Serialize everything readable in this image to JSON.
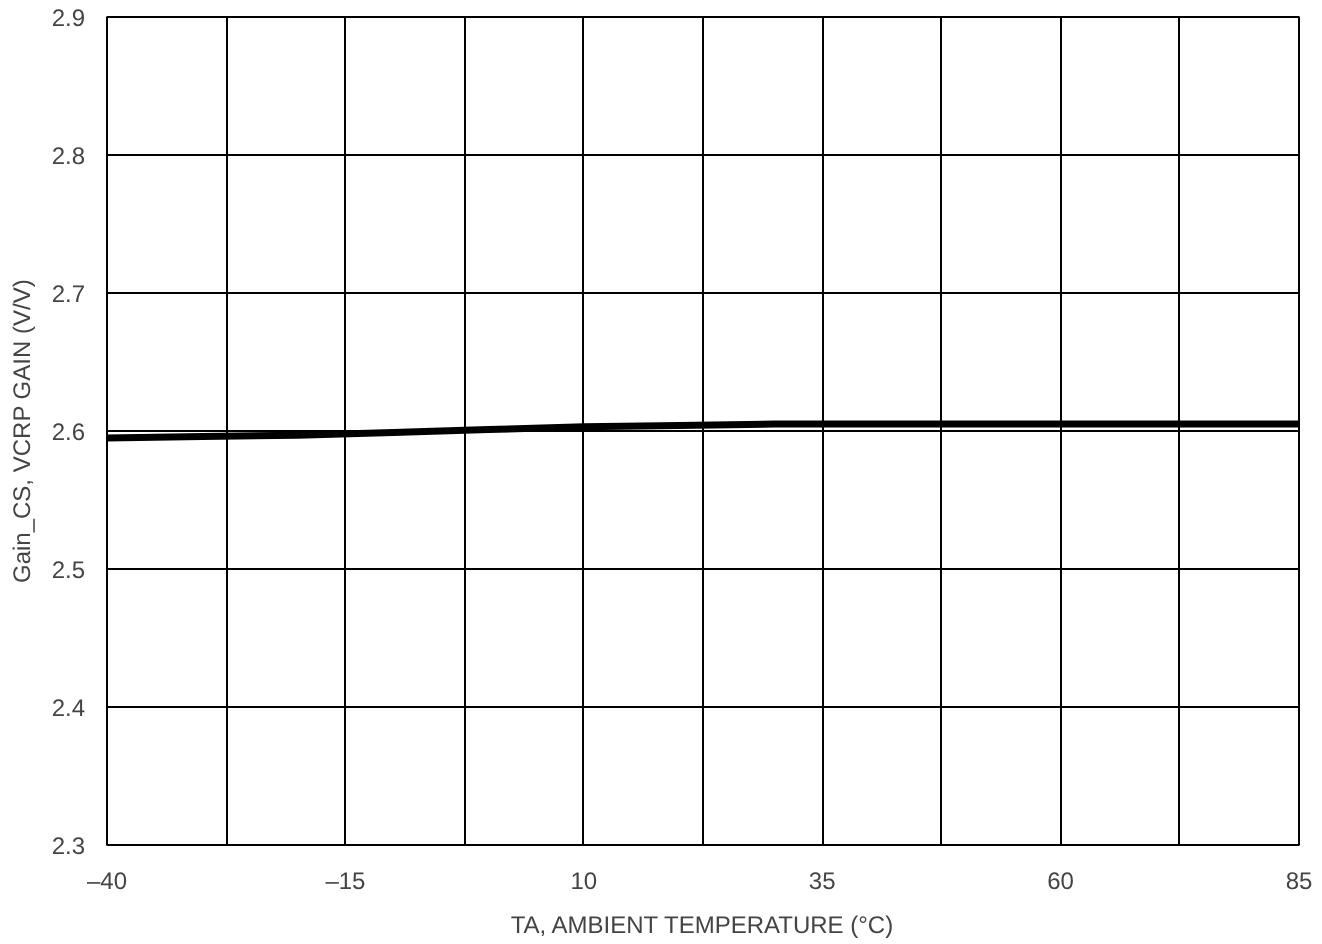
{
  "chart_data": {
    "type": "line",
    "xlabel": "TA, AMBIENT TEMPERATURE (°C)",
    "ylabel": "Gain_CS, VCRP GAIN (V/V)",
    "x": [
      -40,
      -30,
      -20,
      -10,
      0,
      10,
      20,
      30,
      40,
      50,
      60,
      70,
      85
    ],
    "series": [
      {
        "color": "#000000",
        "values": [
          2.595,
          2.596,
          2.597,
          2.599,
          2.601,
          2.603,
          2.604,
          2.605,
          2.605,
          2.605,
          2.605,
          2.605,
          2.605
        ]
      }
    ],
    "xlim": [
      -40,
      85
    ],
    "ylim": [
      2.3,
      2.9
    ],
    "xticks": [
      {
        "value": -40,
        "label": "–40"
      },
      {
        "value": -27.5,
        "label": null
      },
      {
        "value": -15,
        "label": "–15"
      },
      {
        "value": -2.5,
        "label": null
      },
      10,
      {
        "value": 22.5,
        "label": null
      },
      35,
      {
        "value": 47.5,
        "label": null
      },
      60,
      {
        "value": 72.5,
        "label": null
      },
      85
    ],
    "yticks": [
      2.3,
      2.4,
      2.5,
      2.6,
      2.7,
      2.8,
      2.9
    ],
    "grid": true,
    "marker": "none",
    "line_style": "solid"
  }
}
